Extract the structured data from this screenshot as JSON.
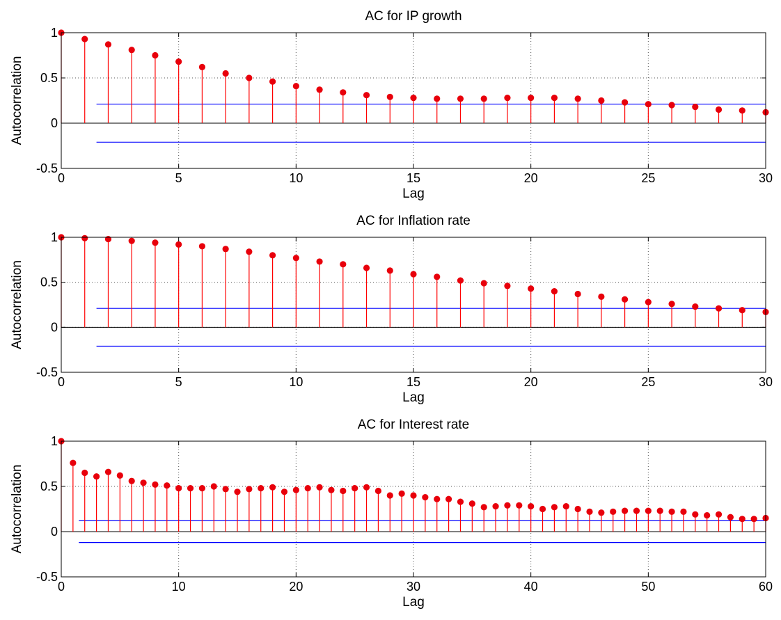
{
  "chart_data": [
    {
      "type": "stem",
      "title": "AC for IP growth",
      "xlabel": "Lag",
      "ylabel": "Autocorrelation",
      "xlim": [
        0,
        30
      ],
      "ylim": [
        -0.5,
        1
      ],
      "xticks": [
        "0",
        "5",
        "10",
        "15",
        "20",
        "25",
        "30"
      ],
      "yticks": [
        "-0.5",
        "0",
        "0.5",
        "1"
      ],
      "grid": true,
      "confidence_bound": 0.21,
      "bound_start_lag": 1.5,
      "lags": [
        0,
        1,
        2,
        3,
        4,
        5,
        6,
        7,
        8,
        9,
        10,
        11,
        12,
        13,
        14,
        15,
        16,
        17,
        18,
        19,
        20,
        21,
        22,
        23,
        24,
        25,
        26,
        27,
        28,
        29,
        30
      ],
      "values": [
        1.0,
        0.93,
        0.87,
        0.81,
        0.75,
        0.68,
        0.62,
        0.55,
        0.5,
        0.46,
        0.41,
        0.37,
        0.34,
        0.31,
        0.29,
        0.28,
        0.27,
        0.27,
        0.27,
        0.28,
        0.28,
        0.28,
        0.27,
        0.25,
        0.23,
        0.21,
        0.2,
        0.18,
        0.15,
        0.14,
        0.12
      ]
    },
    {
      "type": "stem",
      "title": "AC for Inflation rate",
      "xlabel": "Lag",
      "ylabel": "Autocorrelation",
      "xlim": [
        0,
        30
      ],
      "ylim": [
        -0.5,
        1
      ],
      "xticks": [
        "0",
        "5",
        "10",
        "15",
        "20",
        "25",
        "30"
      ],
      "yticks": [
        "-0.5",
        "0",
        "0.5",
        "1"
      ],
      "grid": true,
      "confidence_bound": 0.21,
      "bound_start_lag": 1.5,
      "lags": [
        0,
        1,
        2,
        3,
        4,
        5,
        6,
        7,
        8,
        9,
        10,
        11,
        12,
        13,
        14,
        15,
        16,
        17,
        18,
        19,
        20,
        21,
        22,
        23,
        24,
        25,
        26,
        27,
        28,
        29,
        30
      ],
      "values": [
        1.0,
        0.99,
        0.98,
        0.96,
        0.94,
        0.92,
        0.9,
        0.87,
        0.84,
        0.8,
        0.77,
        0.73,
        0.7,
        0.66,
        0.63,
        0.59,
        0.56,
        0.52,
        0.49,
        0.46,
        0.43,
        0.4,
        0.37,
        0.34,
        0.31,
        0.28,
        0.26,
        0.23,
        0.21,
        0.19,
        0.17
      ]
    },
    {
      "type": "stem",
      "title": "AC for Interest rate",
      "xlabel": "Lag",
      "ylabel": "Autocorrelation",
      "xlim": [
        0,
        60
      ],
      "ylim": [
        -0.5,
        1
      ],
      "xticks": [
        "0",
        "10",
        "20",
        "30",
        "40",
        "50",
        "60"
      ],
      "yticks": [
        "-0.5",
        "0",
        "0.5",
        "1"
      ],
      "grid": true,
      "confidence_bound": 0.12,
      "bound_start_lag": 1.5,
      "lags": [
        0,
        1,
        2,
        3,
        4,
        5,
        6,
        7,
        8,
        9,
        10,
        11,
        12,
        13,
        14,
        15,
        16,
        17,
        18,
        19,
        20,
        21,
        22,
        23,
        24,
        25,
        26,
        27,
        28,
        29,
        30,
        31,
        32,
        33,
        34,
        35,
        36,
        37,
        38,
        39,
        40,
        41,
        42,
        43,
        44,
        45,
        46,
        47,
        48,
        49,
        50,
        51,
        52,
        53,
        54,
        55,
        56,
        57,
        58,
        59,
        60
      ],
      "values": [
        1.0,
        0.76,
        0.65,
        0.61,
        0.66,
        0.62,
        0.56,
        0.54,
        0.52,
        0.51,
        0.48,
        0.48,
        0.48,
        0.5,
        0.47,
        0.44,
        0.47,
        0.48,
        0.49,
        0.44,
        0.46,
        0.48,
        0.49,
        0.46,
        0.45,
        0.48,
        0.49,
        0.45,
        0.4,
        0.42,
        0.4,
        0.38,
        0.36,
        0.36,
        0.33,
        0.31,
        0.27,
        0.28,
        0.29,
        0.29,
        0.28,
        0.25,
        0.27,
        0.28,
        0.25,
        0.22,
        0.21,
        0.22,
        0.23,
        0.23,
        0.23,
        0.23,
        0.22,
        0.22,
        0.19,
        0.18,
        0.19,
        0.16,
        0.14,
        0.14,
        0.15
      ]
    }
  ],
  "colors": {
    "stem": "#ff0000",
    "marker": "#e8000b",
    "bound": "#0000ff",
    "grid": "#555555",
    "axis": "#000000"
  }
}
